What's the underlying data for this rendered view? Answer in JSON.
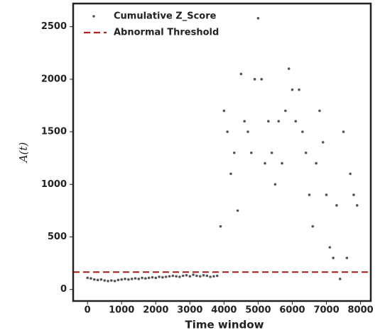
{
  "chart_data": {
    "type": "scatter",
    "xlabel": "Time window",
    "ylabel": "A(t)",
    "x": [
      0,
      100,
      200,
      300,
      400,
      500,
      600,
      700,
      800,
      900,
      1000,
      1100,
      1200,
      1300,
      1400,
      1500,
      1600,
      1700,
      1800,
      1900,
      2000,
      2100,
      2200,
      2300,
      2400,
      2500,
      2600,
      2700,
      2800,
      2900,
      3000,
      3100,
      3200,
      3300,
      3400,
      3500,
      3600,
      3700,
      3800,
      3900,
      4000,
      4100,
      4200,
      4300,
      4400,
      4500,
      4600,
      4700,
      4800,
      4900,
      5000,
      5100,
      5200,
      5300,
      5400,
      5500,
      5600,
      5700,
      5800,
      5900,
      6000,
      6100,
      6200,
      6300,
      6400,
      6500,
      6600,
      6700,
      6800,
      6900,
      7000,
      7100,
      7200,
      7300,
      7400,
      7500,
      7600,
      7700,
      7800,
      7900
    ],
    "series": [
      {
        "name": "Cumulative Z_Score",
        "color": "#555555",
        "values": [
          110,
          105,
          95,
          90,
          95,
          85,
          80,
          85,
          80,
          90,
          95,
          100,
          95,
          100,
          105,
          100,
          110,
          105,
          110,
          115,
          110,
          120,
          115,
          120,
          125,
          130,
          125,
          120,
          130,
          135,
          125,
          140,
          130,
          125,
          135,
          130,
          120,
          125,
          130,
          600,
          1700,
          1500,
          1100,
          1300,
          750,
          2050,
          1600,
          1500,
          1300,
          2000,
          2580,
          2000,
          1200,
          1600,
          1300,
          1000,
          1600,
          1200,
          1700,
          2100,
          1900,
          1600,
          1900,
          1500,
          1300,
          900,
          600,
          1200,
          1700,
          1400,
          900,
          400,
          300,
          800,
          100,
          1500,
          300,
          1100,
          900,
          800
        ]
      }
    ],
    "threshold": {
      "name": "Abnormal Threshold",
      "value": 165,
      "color": "#b22222"
    },
    "xlim": [
      -420,
      8300
    ],
    "ylim": [
      -110,
      2720
    ],
    "xticks": [
      0,
      1000,
      2000,
      3000,
      4000,
      5000,
      6000,
      7000,
      8000
    ],
    "yticks": [
      0,
      500,
      1000,
      1500,
      2000,
      2500
    ]
  }
}
